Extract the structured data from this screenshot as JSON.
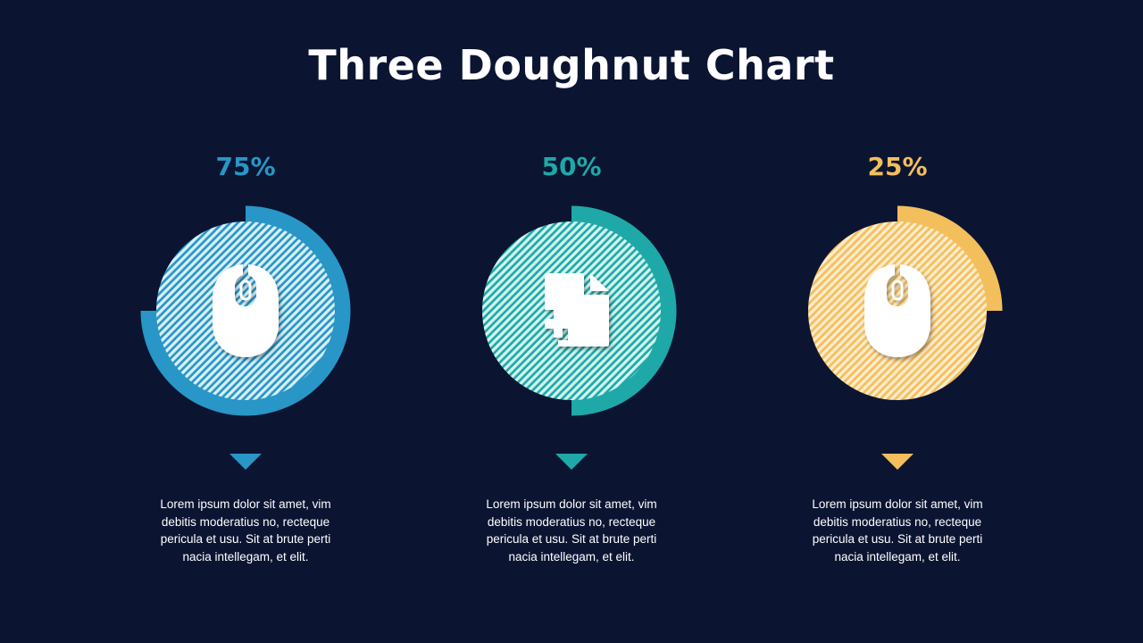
{
  "title": "Three Doughnut Chart",
  "chart_data": {
    "type": "doughnut",
    "title": "Three Doughnut Chart",
    "items": [
      {
        "label": "75%",
        "value": 75,
        "color": "#2896c6",
        "hatch": "#d8f0fa",
        "icon": "mouse-icon",
        "text": "Lorem ipsum dolor sit amet, vim debitis moderatius no, recteque pericula et usu. Sit at brute perti nacia intellegam, et elit."
      },
      {
        "label": "50%",
        "value": 50,
        "color": "#1fa8a8",
        "hatch": "#d2f6f0",
        "icon": "file-plus-icon",
        "text": "Lorem ipsum dolor sit amet, vim debitis moderatius no, recteque pericula et usu. Sit at brute perti nacia intellegam, et elit."
      },
      {
        "label": "25%",
        "value": 25,
        "color": "#f3be5c",
        "hatch": "#fdeccb",
        "icon": "mouse-icon",
        "text": "Lorem ipsum dolor sit amet, vim debitis moderatius no, recteque pericula et usu. Sit at brute perti nacia intellegam, et elit."
      }
    ]
  }
}
